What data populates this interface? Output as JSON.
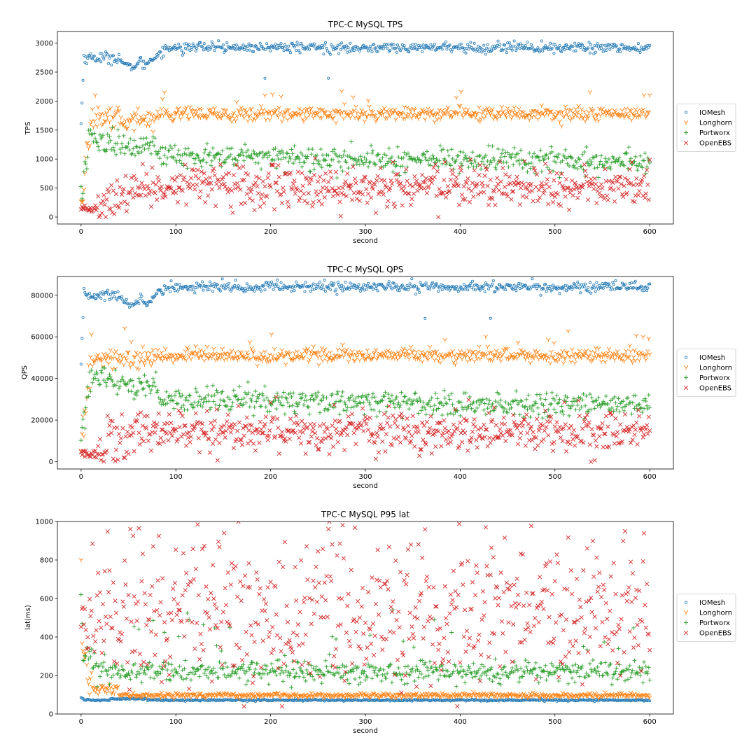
{
  "chart_data": [
    {
      "type": "scatter",
      "title": "TPC-C MySQL TPS",
      "xlabel": "second",
      "ylabel": "TPS",
      "xlim": [
        -25,
        625
      ],
      "ylim": [
        -120,
        3200
      ],
      "xticks": [
        0,
        100,
        200,
        300,
        400,
        500,
        600
      ],
      "yticks": [
        0,
        500,
        1000,
        1500,
        2000,
        2500,
        3000
      ],
      "legend_loc": "center right outside",
      "series": [
        {
          "name": "IOMesh",
          "marker": "circle",
          "color": "#1f77b4",
          "profile": {
            "start": 1600,
            "mid": 2750,
            "dip_at": 50,
            "dip": 2600,
            "steady": 2920
          }
        },
        {
          "name": "Longhorn",
          "marker": "tri_down",
          "color": "#ff7f0e",
          "profile": {
            "start": 150,
            "mid": 1680,
            "steady": 1780,
            "peak": 2250
          }
        },
        {
          "name": "Portworx",
          "marker": "plus",
          "color": "#2ca02c",
          "profile": {
            "start": 450,
            "mid": 1200,
            "steady": 1050,
            "end": 950
          }
        },
        {
          "name": "OpenEBS",
          "marker": "x",
          "color": "#d62728",
          "profile": {
            "start": 80,
            "mid": 500,
            "steady": 520
          }
        }
      ]
    },
    {
      "type": "scatter",
      "title": "TPC-C MySQL QPS",
      "xlabel": "second",
      "ylabel": "QPS",
      "xlim": [
        -25,
        625
      ],
      "ylim": [
        -3500,
        89000
      ],
      "xticks": [
        0,
        100,
        200,
        300,
        400,
        500,
        600
      ],
      "yticks": [
        0,
        20000,
        40000,
        60000,
        80000
      ],
      "legend_loc": "center right outside",
      "series": [
        {
          "name": "IOMesh",
          "marker": "circle",
          "color": "#1f77b4",
          "profile": {
            "start": 46000,
            "mid": 80000,
            "dip_at": 50,
            "dip": 76000,
            "steady": 84000
          }
        },
        {
          "name": "Longhorn",
          "marker": "tri_down",
          "color": "#ff7f0e",
          "profile": {
            "start": 4000,
            "mid": 49000,
            "steady": 51000,
            "peak": 63000
          }
        },
        {
          "name": "Portworx",
          "marker": "plus",
          "color": "#2ca02c",
          "profile": {
            "start": 13000,
            "mid": 36000,
            "steady": 30000,
            "end": 27000
          }
        },
        {
          "name": "OpenEBS",
          "marker": "x",
          "color": "#d62728",
          "profile": {
            "start": 2000,
            "mid": 15000,
            "steady": 15000
          }
        }
      ]
    },
    {
      "type": "scatter",
      "title": "TPC-C MySQL P95 lat",
      "xlabel": "second",
      "ylabel": "lat(ms)",
      "xlim": [
        -25,
        625
      ],
      "ylim": [
        0,
        1000
      ],
      "xticks": [
        0,
        100,
        200,
        300,
        400,
        500,
        600
      ],
      "yticks": [
        0,
        200,
        400,
        600,
        800,
        1000
      ],
      "legend_loc": "center right outside",
      "series": [
        {
          "name": "IOMesh",
          "marker": "circle",
          "color": "#1f77b4",
          "profile": {
            "start": 85,
            "steady": 72
          }
        },
        {
          "name": "Longhorn",
          "marker": "tri_down",
          "color": "#ff7f0e",
          "profile": {
            "start": 800,
            "steady": 97
          }
        },
        {
          "name": "Portworx",
          "marker": "plus",
          "color": "#2ca02c",
          "profile": {
            "start": 620,
            "steady": 220
          }
        },
        {
          "name": "OpenEBS",
          "marker": "x",
          "color": "#d62728",
          "profile": {
            "start": 500,
            "steady": 520,
            "spread": 450
          }
        }
      ]
    }
  ]
}
